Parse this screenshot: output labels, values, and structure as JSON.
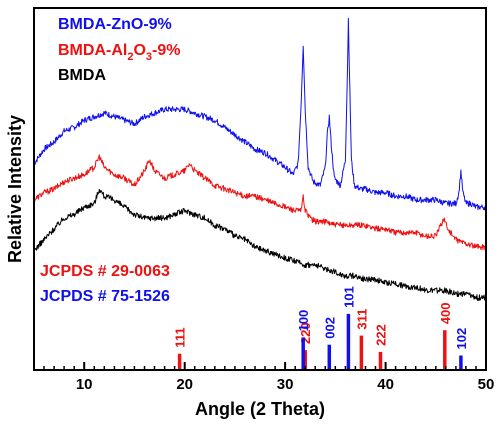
{
  "chart_data": {
    "type": "line",
    "title": "",
    "xlabel": "Angle (2 Theta)",
    "ylabel": "Relative Intensity",
    "xlim": [
      5,
      50
    ],
    "ylim": [
      0,
      100
    ],
    "x_ticks": [
      10,
      20,
      30,
      40,
      50
    ],
    "y_ticks_shown": false,
    "grid": false,
    "legend_position": "top-left",
    "legend": [
      {
        "label": "BMDA-ZnO-9%",
        "color": "#1010ee",
        "parts": [
          {
            "text": "BMDA-ZnO-9%",
            "sub": false
          }
        ]
      },
      {
        "label": "BMDA-Al2O3-9%",
        "color": "#ee1111",
        "parts": [
          {
            "text": "BMDA-Al",
            "sub": false
          },
          {
            "text": "2",
            "sub": true
          },
          {
            "text": "O",
            "sub": false
          },
          {
            "text": "3",
            "sub": true
          },
          {
            "text": "-9%",
            "sub": false
          }
        ]
      },
      {
        "label": "BMDA",
        "color": "#000000",
        "parts": [
          {
            "text": "BMDA",
            "sub": false
          }
        ]
      }
    ],
    "series": [
      {
        "name": "BMDA-ZnO-9%",
        "color": "#1010ee",
        "x": [
          5,
          6,
          7,
          8,
          9,
          10,
          11,
          12,
          13,
          14,
          15,
          16,
          17,
          18,
          19,
          20,
          21,
          22,
          23,
          24,
          25,
          26,
          27,
          28,
          29,
          30,
          30.8,
          31.3,
          31.6,
          31.8,
          32.0,
          32.3,
          32.8,
          33.5,
          34.0,
          34.2,
          34.4,
          34.6,
          34.9,
          35.5,
          36.0,
          36.2,
          36.3,
          36.4,
          36.6,
          36.9,
          37.5,
          38,
          39,
          40,
          41,
          42,
          43,
          44,
          45,
          46,
          47,
          47.3,
          47.5,
          47.7,
          48.0,
          48.5,
          49,
          50
        ],
        "y": [
          57,
          61,
          63,
          66,
          67,
          69,
          70,
          71,
          70,
          69,
          68,
          70,
          71,
          72,
          72,
          72,
          71,
          70,
          69,
          67,
          65,
          63,
          61,
          60,
          58,
          56,
          54,
          57,
          74,
          90,
          72,
          56,
          52,
          51,
          56,
          65,
          70,
          62,
          53,
          51,
          58,
          82,
          97,
          83,
          58,
          51,
          50,
          50,
          49,
          49,
          48,
          48,
          47,
          47,
          47,
          46,
          46,
          49,
          55,
          49,
          46,
          46,
          45,
          45
        ]
      },
      {
        "name": "BMDA-Al2O3-9%",
        "color": "#ee1111",
        "x": [
          5,
          6,
          7,
          8,
          9,
          10,
          11,
          11.5,
          12,
          13,
          14,
          15,
          16,
          16.5,
          17,
          18,
          19,
          20,
          20.5,
          21,
          22,
          23,
          24,
          25,
          26,
          27,
          28,
          29,
          30,
          31,
          31.6,
          31.8,
          32.0,
          32.5,
          33,
          34,
          35,
          36,
          37,
          38,
          39,
          40,
          41,
          42,
          43,
          44,
          45,
          45.5,
          45.8,
          46.2,
          47,
          48,
          49,
          50
        ],
        "y": [
          47,
          49,
          50,
          52,
          53,
          54,
          56,
          59,
          56,
          54,
          53,
          51,
          55,
          58,
          55,
          53,
          54,
          55,
          57,
          55,
          53,
          51,
          50,
          49,
          48,
          48,
          47,
          46,
          45,
          44,
          44,
          48,
          44,
          42,
          41,
          41,
          40,
          40,
          40,
          40,
          39,
          39,
          38,
          38,
          38,
          37,
          37,
          40,
          42,
          39,
          36,
          35,
          34,
          34
        ]
      },
      {
        "name": "BMDA",
        "color": "#000000",
        "x": [
          5,
          6,
          7,
          8,
          9,
          10,
          11,
          11.5,
          12,
          13,
          14,
          15,
          16,
          17,
          18,
          19,
          20,
          21,
          22,
          23,
          24,
          25,
          26,
          27,
          28,
          29,
          30,
          31,
          32,
          33,
          34,
          35,
          36,
          37,
          38,
          39,
          40,
          41,
          42,
          43,
          44,
          45,
          46,
          47,
          48,
          49,
          50
        ],
        "y": [
          33,
          36,
          39,
          42,
          43,
          45,
          46,
          50,
          48,
          47,
          45,
          43,
          42,
          42,
          42,
          43,
          44,
          43,
          42,
          40,
          39,
          37,
          36,
          34,
          33,
          32,
          31,
          30,
          29,
          29,
          28,
          27,
          26,
          26,
          25,
          25,
          24,
          24,
          23,
          23,
          22,
          22,
          22,
          21,
          21,
          20,
          20
        ]
      }
    ],
    "references": [
      {
        "name": "JCPDS # 29-0063",
        "color": "#ee1111",
        "peaks": [
          {
            "x": 19.5,
            "height": 4.5,
            "label": "111"
          },
          {
            "x": 32.0,
            "height": 5.5,
            "label": "220"
          },
          {
            "x": 37.6,
            "height": 9.5,
            "label": "311"
          },
          {
            "x": 39.5,
            "height": 5.0,
            "label": "222"
          },
          {
            "x": 45.9,
            "height": 11.0,
            "label": "400"
          }
        ]
      },
      {
        "name": "JCPDS # 75-1526",
        "color": "#1010ee",
        "peaks": [
          {
            "x": 31.8,
            "height": 9.0,
            "label": "100"
          },
          {
            "x": 34.4,
            "height": 7.0,
            "label": "002"
          },
          {
            "x": 36.3,
            "height": 15.5,
            "label": "101"
          },
          {
            "x": 47.5,
            "height": 4.0,
            "label": "102"
          }
        ]
      }
    ]
  }
}
